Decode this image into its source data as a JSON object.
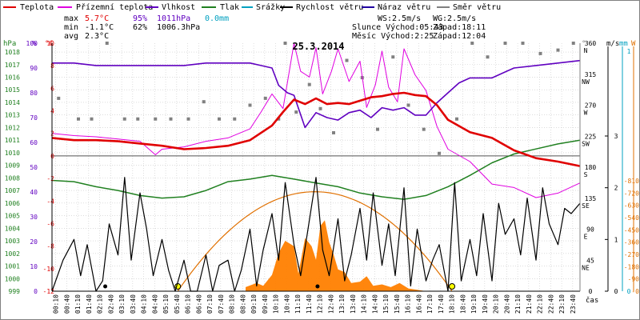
{
  "title": "25.3.2014",
  "legend": [
    {
      "label": "Teplota",
      "color": "#e00000"
    },
    {
      "label": "Přízemní teplota",
      "color": "#e000e0"
    },
    {
      "label": "Vlhkost",
      "color": "#6000c0"
    },
    {
      "label": "Tlak",
      "color": "#208020"
    },
    {
      "label": "Srážky",
      "color": "#00a0c0"
    },
    {
      "label": "Rychlost větru",
      "color": "#000000"
    },
    {
      "label": "Náraz větru",
      "color": "#2000a0"
    },
    {
      "label": "Směr větru",
      "color": "#808080"
    }
  ],
  "stats": {
    "max_label": "max",
    "max_temp": "5.7°C",
    "max_hum": "95%",
    "max_press": "1011hPa",
    "max_rain": "0.0mm",
    "min_label": "min",
    "min_temp": "-1.1°C",
    "min_hum": "62%",
    "min_press": "1006.3hPa",
    "avg_label": "avg",
    "avg_temp": "2.3°C"
  },
  "info": {
    "ws": "WS:2.5m/s",
    "wg": "WG:2.5m/s",
    "sun": "Slunce Východ:05:43",
    "sun_set": "Západ:18:11",
    "moon": "Měsíc Východ:2:25",
    "moon_set": "Západ:12:04"
  },
  "axis_units": {
    "hpa": "hPa",
    "pct": "%",
    "degc": "°C",
    "deg": "°",
    "ms": "m/s",
    "mm": "mm",
    "w": "W",
    "cas": "čas"
  },
  "colors": {
    "temp": "#e00000",
    "ground": "#e000e0",
    "hum": "#6000c0",
    "press": "#208020",
    "rain": "#00a0c0",
    "wind": "#000000",
    "gust": "#2000a0",
    "dir": "#808080",
    "solar": "#ff8000",
    "sunpath": "#e07000",
    "grid": "#c8c8c8"
  },
  "chart_data": {
    "type": "line",
    "x_start": "00:00",
    "x_end": "24:00",
    "xticks": [
      "00:10",
      "00:40",
      "01:10",
      "01:40",
      "02:10",
      "02:40",
      "03:10",
      "03:40",
      "04:10",
      "04:40",
      "05:10",
      "05:40",
      "06:10",
      "06:40",
      "07:10",
      "07:40",
      "08:10",
      "08:40",
      "09:10",
      "09:40",
      "10:10",
      "10:40",
      "11:10",
      "11:40",
      "12:10",
      "12:40",
      "13:10",
      "13:40",
      "14:10",
      "14:40",
      "15:10",
      "15:40",
      "16:10",
      "16:40",
      "17:10",
      "17:40",
      "18:10",
      "18:40",
      "19:10",
      "19:40",
      "20:10",
      "20:40",
      "21:10",
      "21:40",
      "22:10",
      "22:40",
      "23:10",
      "23:40"
    ],
    "y_pressure_ticks": [
      "1018",
      "1017",
      "1016",
      "1015",
      "1014",
      "1013",
      "1012",
      "1011",
      "1010",
      "1009",
      "1008",
      "1007",
      "1006",
      "1005",
      "1004",
      "1003",
      "1002",
      "1001",
      "1000",
      "999"
    ],
    "y_humidity_ticks": [
      "100",
      "90",
      "80",
      "70",
      "60",
      "50",
      "40",
      "30",
      "20",
      "10",
      "0"
    ],
    "y_temp_ticks": [
      "10",
      "8",
      "6",
      "4",
      "2",
      "0",
      "-2",
      "-4",
      "-6",
      "-8",
      "-10",
      "-12"
    ],
    "y_dir_ticks": [
      "360",
      "315",
      "270",
      "225",
      "180",
      "135",
      "90",
      "45",
      "0"
    ],
    "y_dir_labels": [
      "N",
      "NW",
      "W",
      "SW",
      "S",
      "SE",
      "E",
      "NE"
    ],
    "y_wind_ticks": [
      "3",
      "2",
      "1",
      "0"
    ],
    "y_rain_ticks": [
      "1",
      "0"
    ],
    "y_solar_ticks": [
      "810",
      "720",
      "630",
      "540",
      "450",
      "360",
      "270",
      "180",
      "90",
      "0"
    ],
    "ylim_temp": [
      -12,
      10
    ],
    "ylim_hum": [
      0,
      100
    ],
    "ylim_press": [
      999,
      1018.7
    ],
    "ylim_dir": [
      0,
      360
    ],
    "ylim_wind": [
      0,
      3
    ],
    "ylim_solar": [
      0,
      810
    ],
    "series": [
      {
        "name": "Teplota",
        "x": [
          0,
          1,
          2,
          3,
          4,
          5,
          6,
          7,
          8,
          9,
          10,
          10.5,
          11,
          11.5,
          12,
          12.5,
          13,
          13.5,
          14,
          14.5,
          15,
          15.5,
          16,
          16.5,
          17,
          17.5,
          18,
          19,
          20,
          21,
          22,
          23,
          24
        ],
        "values": [
          1.6,
          1.4,
          1.4,
          1.3,
          1.1,
          0.9,
          0.6,
          0.7,
          0.9,
          1.4,
          2.7,
          3.9,
          5.0,
          4.6,
          5.1,
          4.6,
          4.7,
          4.6,
          4.9,
          5.2,
          5.3,
          5.5,
          5.6,
          5.4,
          5.3,
          4.5,
          3.2,
          2.1,
          1.6,
          0.5,
          -0.2,
          -0.5,
          -0.9
        ]
      },
      {
        "name": "Přízemní teplota",
        "x": [
          0,
          1,
          2,
          3,
          4,
          4.7,
          5,
          6,
          7,
          8,
          9,
          9.5,
          10,
          10.5,
          11,
          11.3,
          11.7,
          12,
          12.3,
          12.7,
          13,
          13.5,
          14,
          14.3,
          14.7,
          15,
          15.3,
          15.7,
          16,
          16.5,
          17,
          17.5,
          18,
          19,
          20,
          21,
          22,
          23,
          24
        ],
        "values": [
          2.0,
          1.8,
          1.7,
          1.5,
          1.3,
          0.1,
          0.6,
          0.8,
          1.3,
          1.6,
          2.4,
          3.9,
          5.5,
          4.2,
          10.0,
          7.5,
          7.0,
          9.6,
          5.5,
          7.5,
          9.5,
          6.6,
          8.4,
          4.3,
          6.3,
          9.3,
          6.1,
          4.8,
          9.5,
          7.2,
          5.8,
          2.6,
          0.6,
          -0.5,
          -2.5,
          -2.8,
          -3.7,
          -3.3,
          -2.4
        ]
      },
      {
        "name": "Vlhkost",
        "x": [
          0,
          1,
          2,
          3,
          4,
          5,
          6,
          7,
          8,
          9,
          9.5,
          10,
          10.3,
          10.7,
          11,
          11.5,
          12,
          12.5,
          13,
          13.5,
          14,
          14.5,
          15,
          15.5,
          16,
          16.5,
          17,
          17.5,
          18,
          18.5,
          19,
          20,
          21,
          22,
          23,
          24
        ],
        "values": [
          92,
          92,
          91,
          91,
          91,
          91,
          91,
          92,
          92,
          92,
          91,
          90,
          83,
          80,
          79,
          66,
          72,
          70,
          69,
          72,
          73,
          70,
          74,
          73,
          74,
          71,
          71,
          76,
          80,
          84,
          86,
          86,
          90,
          91,
          92,
          93
        ]
      },
      {
        "name": "Tlak",
        "x": [
          0,
          1,
          2,
          3,
          4,
          5,
          6,
          7,
          8,
          9,
          10,
          11,
          12,
          13,
          14,
          15,
          16,
          17,
          18,
          19,
          20,
          21,
          22,
          23,
          24
        ],
        "values": [
          1007.8,
          1007.7,
          1007.3,
          1007.0,
          1006.6,
          1006.4,
          1006.5,
          1007.0,
          1007.7,
          1007.9,
          1008.2,
          1007.9,
          1007.6,
          1007.3,
          1006.8,
          1006.5,
          1006.3,
          1006.6,
          1007.3,
          1008.2,
          1009.2,
          1009.9,
          1010.3,
          1010.7,
          1011.0
        ]
      },
      {
        "name": "Rychlost větru",
        "x": [
          0,
          0.5,
          1,
          1.3,
          1.6,
          2,
          2.3,
          2.6,
          3,
          3.3,
          3.6,
          4,
          4.3,
          4.6,
          5,
          5.3,
          5.6,
          6,
          6.3,
          6.6,
          7,
          7.3,
          7.6,
          8,
          8.3,
          8.6,
          9,
          9.3,
          9.6,
          10,
          10.3,
          10.6,
          11,
          11.3,
          11.6,
          12,
          12.3,
          12.6,
          13,
          13.3,
          13.6,
          14,
          14.3,
          14.6,
          15,
          15.3,
          15.6,
          16,
          16.3,
          16.6,
          17,
          17.3,
          17.6,
          18,
          18.3,
          18.6,
          19,
          19.3,
          19.6,
          20,
          20.3,
          20.6,
          21,
          21.3,
          21.6,
          22,
          22.3,
          22.6,
          23,
          23.3,
          23.6,
          24
        ],
        "values": [
          0,
          0.6,
          1.0,
          0.3,
          0.9,
          0,
          0.2,
          1.3,
          0.7,
          2.2,
          0.6,
          1.9,
          1.2,
          0.3,
          1.0,
          0.4,
          0,
          0.6,
          0,
          0,
          0.7,
          0,
          0.5,
          0.6,
          0,
          0.4,
          1.2,
          0.1,
          0.8,
          1.5,
          0.6,
          2.1,
          0.9,
          0.3,
          1.1,
          2.2,
          0.8,
          0.3,
          1.4,
          0.2,
          0.7,
          1.6,
          0.6,
          1.9,
          0.5,
          1.3,
          0.3,
          2.0,
          0.1,
          1.2,
          0.2,
          0.6,
          0.9,
          0,
          2.1,
          0.2,
          1.0,
          0.3,
          1.5,
          0.2,
          1.7,
          1.1,
          1.4,
          0.7,
          1.8,
          0.6,
          2.0,
          1.3,
          0.9,
          1.6,
          1.5,
          1.7
        ]
      },
      {
        "name": "Směr větru",
        "x": [
          0.3,
          1.2,
          1.8,
          2.5,
          3.3,
          3.9,
          4.7,
          5.4,
          6.2,
          6.9,
          7.6,
          8.3,
          9.0,
          9.7,
          10.3,
          10.6,
          11.1,
          11.7,
          12.2,
          12.8,
          13.4,
          14.1,
          14.8,
          15.5,
          16.2,
          16.9,
          17.6,
          18.4,
          19.1,
          19.8,
          20.6,
          21.4,
          22.2,
          23.0,
          23.7
        ],
        "values": [
          280,
          250,
          250,
          360,
          250,
          250,
          250,
          250,
          250,
          275,
          250,
          250,
          270,
          280,
          250,
          360,
          260,
          300,
          265,
          230,
          335,
          310,
          235,
          340,
          270,
          235,
          200,
          250,
          360,
          340,
          360,
          360,
          345,
          350,
          360
        ]
      }
    ],
    "solar": {
      "name": "Sluneční záření",
      "x": [
        8.8,
        9.3,
        9.6,
        10,
        10.3,
        10.6,
        11.0,
        11.2,
        11.5,
        11.8,
        12.0,
        12.2,
        12.4,
        12.6,
        12.8,
        13.0,
        13.3,
        13.6,
        14.0,
        14.3,
        14.6,
        15.0,
        15.4,
        15.8,
        16.2,
        16.6,
        17.0
      ],
      "values": [
        30,
        60,
        40,
        120,
        280,
        370,
        330,
        130,
        390,
        330,
        230,
        480,
        520,
        360,
        270,
        160,
        140,
        60,
        70,
        110,
        40,
        50,
        30,
        60,
        20,
        10,
        0
      ]
    },
    "sun_path": {
      "rise": "05:43",
      "set": "18:11",
      "max": 730
    }
  }
}
